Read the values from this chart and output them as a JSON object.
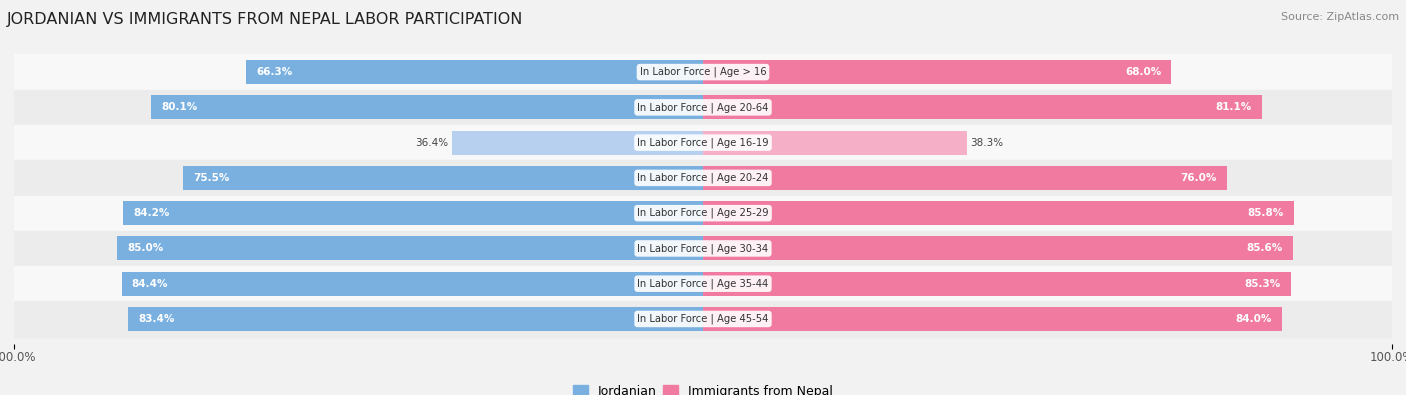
{
  "title": "JORDANIAN VS IMMIGRANTS FROM NEPAL LABOR PARTICIPATION",
  "source": "Source: ZipAtlas.com",
  "categories": [
    "In Labor Force | Age > 16",
    "In Labor Force | Age 20-64",
    "In Labor Force | Age 16-19",
    "In Labor Force | Age 20-24",
    "In Labor Force | Age 25-29",
    "In Labor Force | Age 30-34",
    "In Labor Force | Age 35-44",
    "In Labor Force | Age 45-54"
  ],
  "jordanian": [
    66.3,
    80.1,
    36.4,
    75.5,
    84.2,
    85.0,
    84.4,
    83.4
  ],
  "nepal": [
    68.0,
    81.1,
    38.3,
    76.0,
    85.8,
    85.6,
    85.3,
    84.0
  ],
  "jordanian_color": "#7ab0e0",
  "jordanian_color_light": "#b8d0f0",
  "nepal_color": "#f07aa0",
  "nepal_color_light": "#f5b0c8",
  "bar_height": 0.68,
  "background_color": "#f2f2f2",
  "row_colors": [
    "#f8f8f8",
    "#ececec"
  ]
}
